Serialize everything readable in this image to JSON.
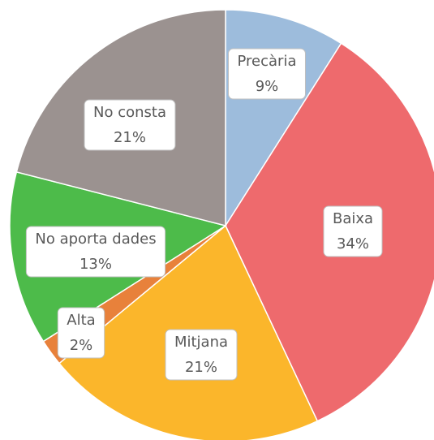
{
  "chart_data": {
    "type": "pie",
    "categories": [
      "Precària",
      "Baixa",
      "Mitjana",
      "Alta",
      "No aporta dades",
      "No consta"
    ],
    "values": [
      9,
      34,
      21,
      2,
      13,
      21
    ],
    "value_labels": [
      "9%",
      "34%",
      "21%",
      "2%",
      "13%",
      "21%"
    ],
    "colors": [
      "#9dbcdc",
      "#ee6a6d",
      "#fbb62b",
      "#e8813b",
      "#4dbb4a",
      "#9b9290"
    ]
  }
}
